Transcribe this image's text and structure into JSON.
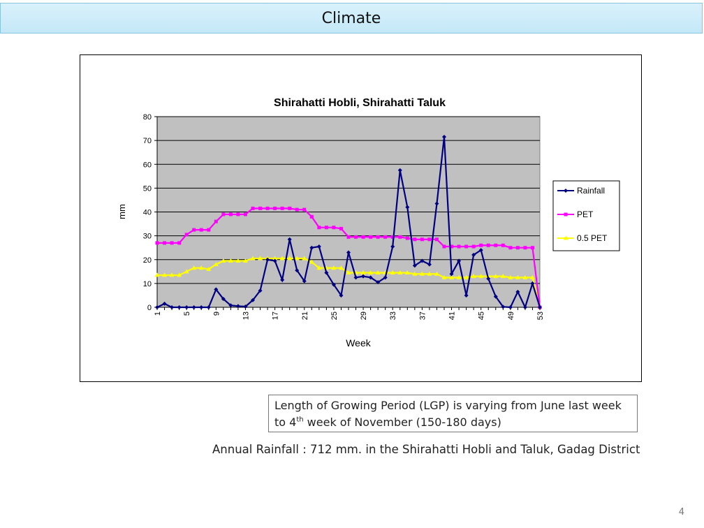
{
  "slide": {
    "title": "Climate",
    "note_prefix": "Length of Growing Period (LGP) is varying from June last week to 4",
    "note_sup": "th",
    "note_suffix": " week of November (150-180 days)",
    "annual_text": "Annual Rainfall : 712 mm. in the Shirahatti Hobli and Taluk, Gadag District",
    "page_number": "4"
  },
  "chart_data": {
    "type": "line",
    "title": "Shirahatti Hobli, Shirahatti Taluk",
    "xlabel": "Week",
    "ylabel": "mm",
    "ylim": [
      0,
      80
    ],
    "yticks": [
      0,
      10,
      20,
      30,
      40,
      50,
      60,
      70,
      80
    ],
    "xlim": [
      1,
      53
    ],
    "xticks": [
      1,
      5,
      9,
      13,
      17,
      21,
      25,
      29,
      33,
      37,
      41,
      45,
      49,
      53
    ],
    "grid": "horizontal",
    "plot_background": "#c0c0c0",
    "legend_position": "right",
    "series": [
      {
        "name": "Rainfall",
        "color": "#000080",
        "marker": "diamond",
        "values": [
          0,
          1.5,
          0,
          0,
          0,
          0,
          0,
          0,
          7.5,
          3.5,
          0.8,
          0.5,
          0.3,
          3,
          7,
          20,
          19.5,
          11.5,
          28.5,
          15.5,
          11,
          25,
          25.5,
          14.5,
          9.5,
          5,
          23,
          12.5,
          13,
          12.5,
          10.5,
          12.5,
          25.5,
          57.5,
          42,
          17.5,
          19.5,
          18,
          43.5,
          71.5,
          14,
          19.5,
          5,
          22,
          24,
          12,
          4.5,
          0.2,
          0,
          6.5,
          0,
          10,
          0
        ]
      },
      {
        "name": "PET",
        "color": "#ff00ff",
        "marker": "square",
        "values": [
          27,
          27,
          27,
          27,
          30.5,
          32.5,
          32.5,
          32.5,
          36,
          39,
          39,
          39,
          39,
          41.5,
          41.5,
          41.5,
          41.5,
          41.5,
          41.5,
          41,
          41,
          38,
          33.5,
          33.5,
          33.5,
          33,
          29.5,
          29.5,
          29.5,
          29.5,
          29.5,
          29.5,
          29.5,
          29.5,
          29,
          28.5,
          28.5,
          28.5,
          28.5,
          25.5,
          25.5,
          25.5,
          25.5,
          25.5,
          26,
          26,
          26,
          26,
          25,
          25,
          25,
          25,
          0
        ]
      },
      {
        "name": "0.5 PET",
        "color": "#ffff00",
        "marker": "triangle",
        "values": [
          13.5,
          13.5,
          13.5,
          13.5,
          15,
          16.5,
          16.5,
          16,
          18,
          19.5,
          19.5,
          19.5,
          19.5,
          20.5,
          20.5,
          20.5,
          20.5,
          20.5,
          20.5,
          20.5,
          20.5,
          19,
          16.5,
          16.5,
          16.5,
          16.5,
          14.5,
          14.5,
          14.5,
          14.5,
          14.5,
          14.5,
          14.5,
          14.5,
          14.5,
          14,
          14,
          14,
          14,
          12.5,
          12.5,
          12.5,
          12.5,
          13,
          13,
          13,
          13,
          13,
          12.5,
          12.5,
          12.5,
          12.5,
          0
        ]
      }
    ]
  }
}
